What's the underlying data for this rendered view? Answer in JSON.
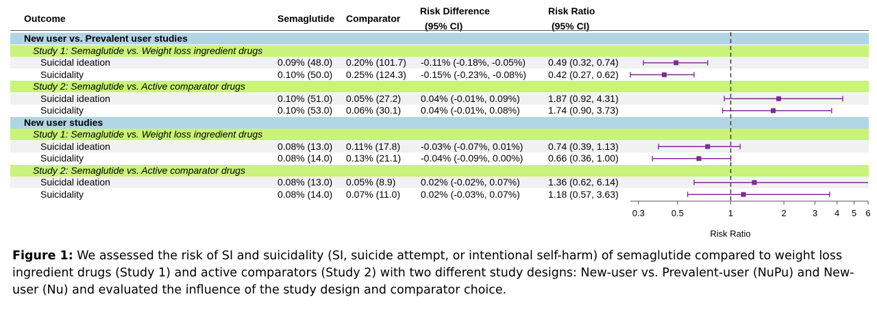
{
  "headers": {
    "outcome": "Outcome",
    "semaglutide": "Semaglutide",
    "comparator": "Comparator",
    "rd_line1": "Risk Difference",
    "rd_line2": "(95% CI)",
    "rr_line1": "Risk Ratio",
    "rr_line2": "(95% CI)"
  },
  "rows": [
    {
      "kind": "design",
      "label": "New user vs. Prevalent user studies"
    },
    {
      "kind": "study",
      "label": "Study 1: Semaglutide vs. Weight loss ingredient drugs"
    },
    {
      "kind": "data",
      "outcome": "Suicidal ideation",
      "semaglutide": "0.09% (48.0)",
      "comparator": "0.20% (101.7)",
      "rd": "-0.11% (-0.18%, -0.05%)",
      "rr": "0.49 (0.32, 0.74)"
    },
    {
      "kind": "data",
      "outcome": "Suicidality",
      "semaglutide": "0.10% (50.0)",
      "comparator": "0.25% (124.3)",
      "rd": "-0.15% (-0.23%, -0.08%)",
      "rr": "0.42 (0.27, 0.62)"
    },
    {
      "kind": "study",
      "label": "Study 2: Semaglutide vs. Active comparator drugs"
    },
    {
      "kind": "data",
      "outcome": "Suicidal ideation",
      "semaglutide": "0.10% (51.0)",
      "comparator": "0.05% (27.2)",
      "rd": "0.04% (-0.01%, 0.09%)",
      "rr": "1.87 (0.92, 4.31)"
    },
    {
      "kind": "data",
      "outcome": "Suicidality",
      "semaglutide": "0.10% (53.0)",
      "comparator": "0.06% (30.1)",
      "rd": "0.04% (-0.01%, 0.08%)",
      "rr": "1.74 (0.90, 3.73)"
    },
    {
      "kind": "design",
      "label": "New user studies"
    },
    {
      "kind": "study",
      "label": "Study 1: Semaglutide vs. Weight loss ingredient drugs"
    },
    {
      "kind": "data",
      "outcome": "Suicidal ideation",
      "semaglutide": "0.08% (13.0)",
      "comparator": "0.11% (17.8)",
      "rd": "-0.03% (-0.07%, 0.01%)",
      "rr": "0.74 (0.39, 1.13)"
    },
    {
      "kind": "data",
      "outcome": "Suicidality",
      "semaglutide": "0.08% (14.0)",
      "comparator": "0.13% (21.1)",
      "rd": "-0.04% (-0.09%, 0.00%)",
      "rr": "0.66 (0.36, 1.00)"
    },
    {
      "kind": "study",
      "label": "Study 2: Semaglutide vs. Active comparator drugs"
    },
    {
      "kind": "data",
      "outcome": "Suicidal ideation",
      "semaglutide": "0.08% (13.0)",
      "comparator": "0.05% (8.9)",
      "rd": "0.02% (-0.02%, 0.07%)",
      "rr": "1.36 (0.62, 6.14)"
    },
    {
      "kind": "data",
      "outcome": "Suicidality",
      "semaglutide": "0.08% (14.0)",
      "comparator": "0.07% (11.0)",
      "rd": "0.02% (-0.03%, 0.07%)",
      "rr": "1.18 (0.57, 3.63)"
    }
  ],
  "chart_data": {
    "type": "scatter",
    "xlabel": "Risk Ratio",
    "x_scale": "log",
    "xlim": [
      0.27,
      6
    ],
    "x_ticks": [
      0.3,
      0.5,
      1,
      2,
      3,
      4,
      5,
      6
    ],
    "x_tick_labels": [
      "0.3",
      "0.5",
      "1",
      "2",
      "3",
      "4",
      "5",
      "6"
    ],
    "reference_line": 1,
    "points": [
      {
        "row": 2,
        "estimate": 0.49,
        "lower": 0.32,
        "upper": 0.74
      },
      {
        "row": 3,
        "estimate": 0.42,
        "lower": 0.27,
        "upper": 0.62
      },
      {
        "row": 5,
        "estimate": 1.87,
        "lower": 0.92,
        "upper": 4.31
      },
      {
        "row": 6,
        "estimate": 1.74,
        "lower": 0.9,
        "upper": 3.73
      },
      {
        "row": 9,
        "estimate": 0.74,
        "lower": 0.39,
        "upper": 1.13
      },
      {
        "row": 10,
        "estimate": 0.66,
        "lower": 0.36,
        "upper": 1.0
      },
      {
        "row": 12,
        "estimate": 1.36,
        "lower": 0.62,
        "upper": 6.14
      },
      {
        "row": 13,
        "estimate": 1.18,
        "lower": 0.57,
        "upper": 3.63
      }
    ],
    "marker_color": "#7b2d8e"
  },
  "caption": {
    "label": "Figure 1:",
    "text": " We assessed the risk of SI and suicidality (SI, suicide attempt, or intentional self-harm) of semaglutide compared to weight loss ingredient drugs (Study 1) and active comparators (Study 2) with two different study designs: New-user vs. Prevalent-user (NuPu) and New-user (Nu) and evaluated the influence of the study design and comparator choice."
  }
}
